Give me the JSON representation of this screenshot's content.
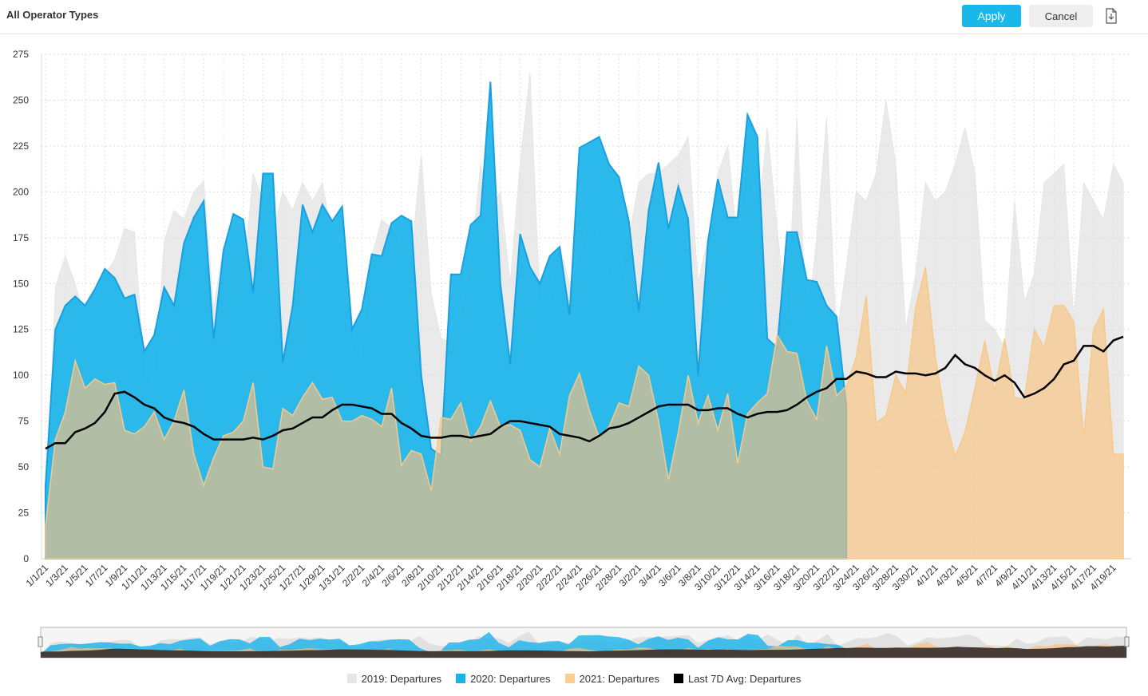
{
  "header": {
    "title": "All Operator Types",
    "apply_label": "Apply",
    "cancel_label": "Cancel",
    "export_icon": "export-file-icon"
  },
  "colors": {
    "2019": "#e8e8e8",
    "2020": "#1ab3ea",
    "2021": "#f9cf93",
    "avg": "#000000",
    "accent": "#1ab7ea"
  },
  "chart_data": {
    "type": "area",
    "y_ticks": [
      0,
      25,
      50,
      75,
      100,
      125,
      150,
      175,
      200,
      225,
      250,
      275
    ],
    "ylim": [
      0,
      275
    ],
    "x_labels": [
      "1/1/21",
      "1/3/21",
      "1/5/21",
      "1/7/21",
      "1/9/21",
      "1/11/21",
      "1/13/21",
      "1/15/21",
      "1/17/21",
      "1/19/21",
      "1/21/21",
      "1/23/21",
      "1/25/21",
      "1/27/21",
      "1/29/21",
      "1/31/21",
      "2/2/21",
      "2/4/21",
      "2/6/21",
      "2/8/21",
      "2/10/21",
      "2/12/21",
      "2/14/21",
      "2/16/21",
      "2/18/21",
      "2/20/21",
      "2/22/21",
      "2/24/21",
      "2/26/21",
      "2/28/21",
      "3/2/21",
      "3/4/21",
      "3/6/21",
      "3/8/21",
      "3/10/21",
      "3/12/21",
      "3/14/21",
      "3/16/21",
      "3/18/21",
      "3/20/21",
      "3/22/21",
      "3/24/21",
      "3/26/21",
      "3/28/21",
      "3/30/21",
      "4/1/21",
      "4/3/21",
      "4/5/21",
      "4/7/21",
      "4/9/21",
      "4/11/21",
      "4/13/21",
      "4/15/21",
      "4/17/21",
      "4/19/21"
    ],
    "n_points": 110,
    "series": [
      {
        "name": "2019: Departures",
        "values": [
          18,
          148,
          165,
          150,
          130,
          140,
          155,
          163,
          180,
          178,
          100,
          92,
          173,
          190,
          185,
          200,
          206,
          136,
          170,
          155,
          150,
          210,
          195,
          178,
          200,
          190,
          205,
          195,
          205,
          175,
          170,
          120,
          105,
          165,
          185,
          180,
          170,
          165,
          220,
          145,
          120,
          118,
          130,
          160,
          215,
          190,
          200,
          150,
          215,
          265,
          140,
          135,
          170,
          150,
          160,
          185,
          170,
          160,
          140,
          175,
          205,
          210,
          210,
          215,
          220,
          230,
          150,
          175,
          210,
          225,
          170,
          215,
          180,
          235,
          180,
          125,
          240,
          125,
          175,
          240,
          120,
          160,
          200,
          195,
          210,
          250,
          215,
          125,
          155,
          205,
          195,
          200,
          215,
          235,
          210,
          130,
          125,
          115,
          195,
          140,
          155,
          205,
          210,
          215,
          130,
          205,
          195,
          185,
          215,
          205
        ]
      },
      {
        "name": "2020: Departures",
        "values": [
          40,
          125,
          138,
          143,
          138,
          147,
          158,
          153,
          142,
          144,
          113,
          122,
          148,
          138,
          172,
          186,
          195,
          120,
          168,
          188,
          185,
          145,
          210,
          210,
          107,
          138,
          193,
          178,
          193,
          184,
          192,
          125,
          136,
          166,
          165,
          183,
          187,
          184,
          100,
          60,
          56,
          155,
          155,
          182,
          187,
          260,
          150,
          106,
          177,
          159,
          150,
          165,
          170,
          133,
          224,
          227,
          230,
          215,
          208,
          184,
          135,
          190,
          216,
          180,
          203,
          185,
          100,
          173,
          207,
          186,
          186,
          242,
          230,
          120,
          115,
          178,
          178,
          152,
          151,
          138,
          132,
          83,
          null,
          null,
          null,
          null,
          null,
          null,
          null,
          null,
          null,
          null,
          null,
          null,
          null,
          null,
          null,
          null,
          null,
          null,
          null,
          null,
          null,
          null,
          null,
          null,
          null,
          null,
          null,
          null
        ]
      },
      {
        "name": "2021: Departures",
        "values": [
          18,
          65,
          80,
          108,
          93,
          98,
          95,
          96,
          70,
          68,
          72,
          80,
          65,
          75,
          92,
          57,
          40,
          55,
          67,
          69,
          75,
          96,
          50,
          49,
          82,
          78,
          88,
          96,
          87,
          88,
          75,
          75,
          78,
          76,
          72,
          93,
          51,
          59,
          57,
          37,
          77,
          76,
          85,
          64,
          72,
          86,
          72,
          73,
          70,
          54,
          50,
          71,
          57,
          89,
          101,
          81,
          66,
          72,
          85,
          83,
          105,
          100,
          75,
          43,
          69,
          100,
          74,
          89,
          70,
          90,
          52,
          79,
          85,
          90,
          122,
          113,
          112,
          86,
          76,
          116,
          89,
          94,
          110,
          143,
          74,
          78,
          100,
          90,
          137,
          159,
          110,
          77,
          56,
          69,
          93,
          119,
          91,
          120,
          88,
          87,
          125,
          115,
          138,
          138,
          129,
          66,
          125,
          136,
          57,
          57
        ]
      },
      {
        "name": "Last 7D Avg: Departures",
        "values": [
          60,
          63,
          63,
          69,
          71,
          74,
          80,
          90,
          91,
          88,
          84,
          82,
          77,
          75,
          74,
          72,
          68,
          65,
          65,
          65,
          65,
          66,
          65,
          67,
          70,
          71,
          74,
          77,
          77,
          81,
          84,
          84,
          83,
          82,
          79,
          79,
          74,
          71,
          67,
          66,
          66,
          67,
          67,
          66,
          67,
          68,
          72,
          75,
          75,
          74,
          73,
          72,
          68,
          67,
          66,
          64,
          67,
          71,
          72,
          74,
          77,
          80,
          83,
          84,
          84,
          84,
          81,
          81,
          82,
          82,
          79,
          77,
          79,
          80,
          80,
          81,
          84,
          88,
          91,
          93,
          98,
          98,
          102,
          101,
          99,
          99,
          102,
          101,
          101,
          100,
          101,
          104,
          111,
          106,
          104,
          100,
          97,
          100,
          96,
          88,
          90,
          93,
          98,
          106,
          108,
          116,
          116,
          113,
          119,
          121
        ]
      }
    ]
  },
  "navigator": {
    "label": "range-navigator"
  }
}
